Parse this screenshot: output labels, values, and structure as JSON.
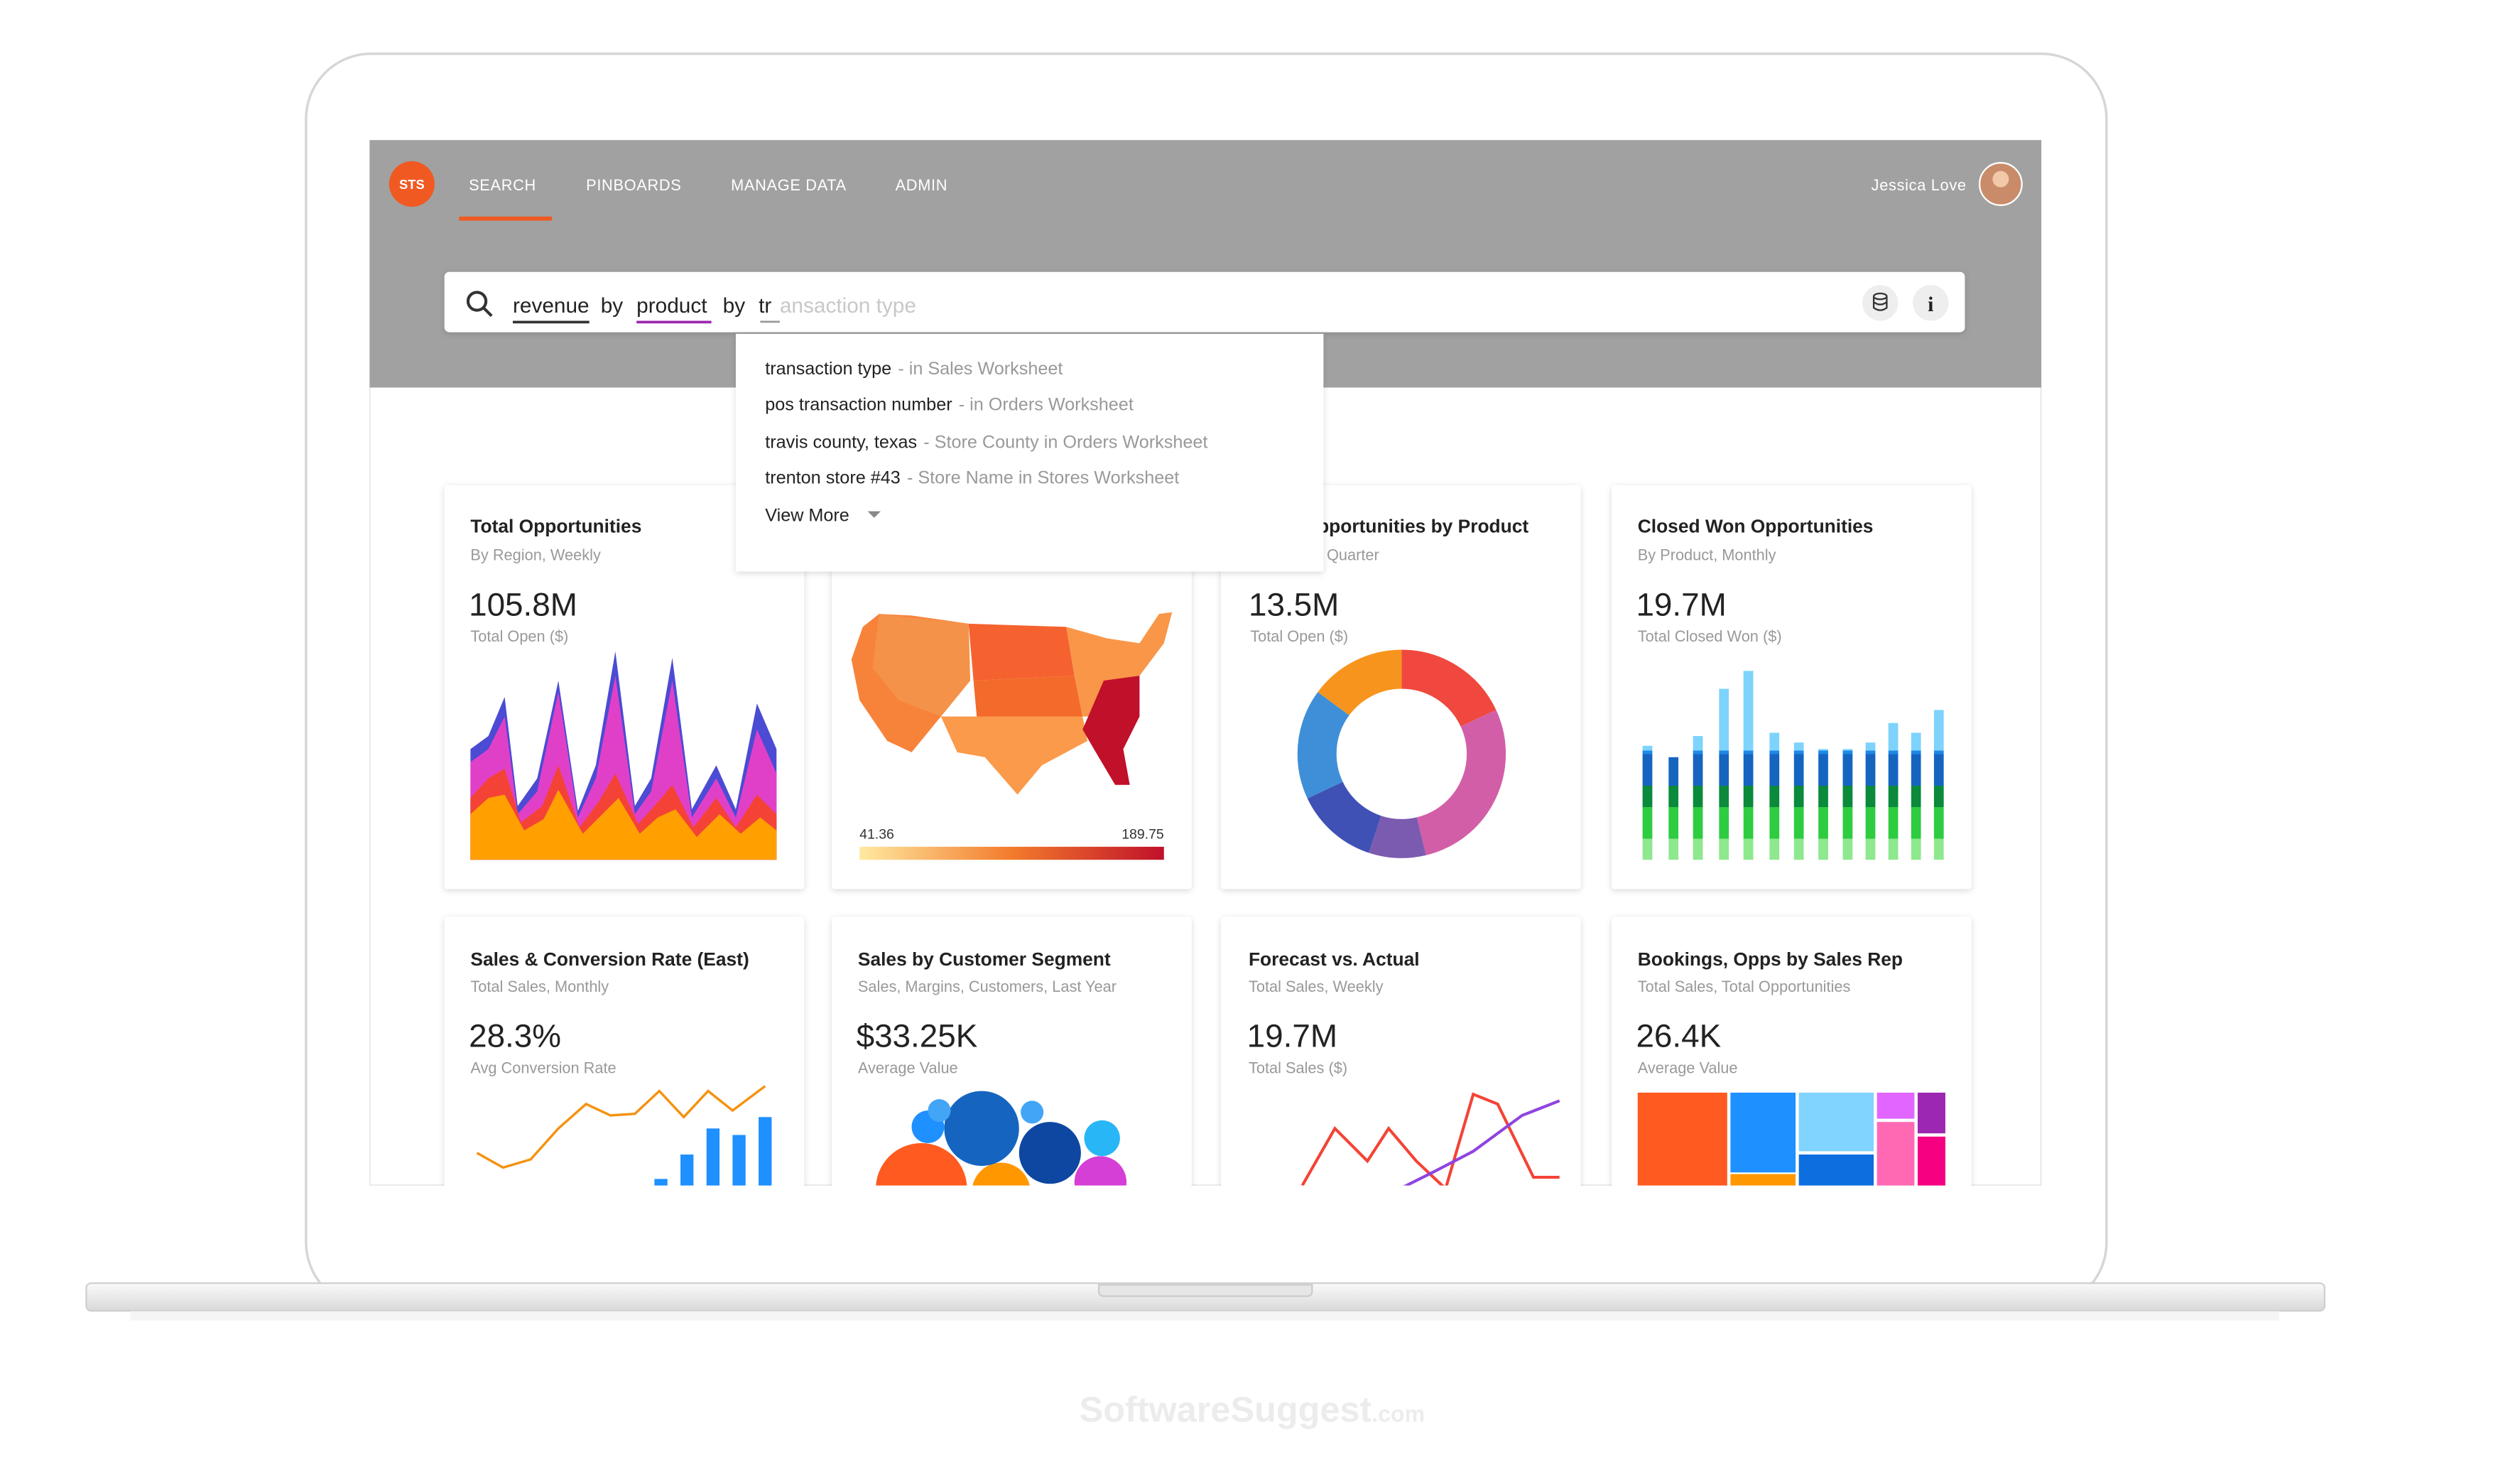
{
  "nav": {
    "logo": "STS",
    "items": [
      "SEARCH",
      "PINBOARDS",
      "MANAGE DATA",
      "ADMIN"
    ],
    "user": "Jessica Love"
  },
  "search": {
    "tokens": [
      "revenue",
      "by",
      "product",
      "by"
    ],
    "typed": "tr",
    "completion": "ansaction type"
  },
  "suggestions": [
    {
      "term": "transaction type",
      "source": "- in Sales Worksheet"
    },
    {
      "term": "pos transaction number",
      "source": "- in Orders Worksheet"
    },
    {
      "term": "travis county, texas",
      "source": "- Store County in Orders Worksheet"
    },
    {
      "term": "trenton store #43",
      "source": "- Store Name in Stores Worksheet"
    }
  ],
  "view_more": "View More",
  "cards": [
    {
      "title": "Total Opportunities",
      "subtitle": "By Region, Weekly",
      "value": "105.8M",
      "caption": "Total Open ($)"
    },
    {
      "legend_min": 41.36,
      "legend_max": 189.75
    },
    {
      "title": "Opportunities by Product",
      "subtitle": "Quarter",
      "value": "13.5M",
      "caption": "Total Open ($)"
    },
    {
      "title": "Closed Won Opportunities",
      "subtitle": "By Product, Monthly",
      "value": "19.7M",
      "caption": "Total Closed Won ($)"
    },
    {
      "title": "Sales & Conversion Rate (East)",
      "subtitle": "Total Sales, Monthly",
      "value": "28.3%",
      "caption": "Avg Conversion Rate"
    },
    {
      "title": "Sales by Customer Segment",
      "subtitle": "Sales, Margins, Customers, Last Year",
      "value": "$33.25K",
      "caption": "Average Value"
    },
    {
      "title": "Forecast vs. Actual",
      "subtitle": "Total Sales, Weekly",
      "value": "19.7M",
      "caption": "Total Sales ($)"
    },
    {
      "title": "Bookings, Opps by Sales Rep",
      "subtitle": "Total Sales, Total Opportunities",
      "value": "26.4K",
      "caption": "Average Value"
    }
  ],
  "watermark": {
    "name": "SoftwareSuggest",
    "tld": ".com"
  }
}
